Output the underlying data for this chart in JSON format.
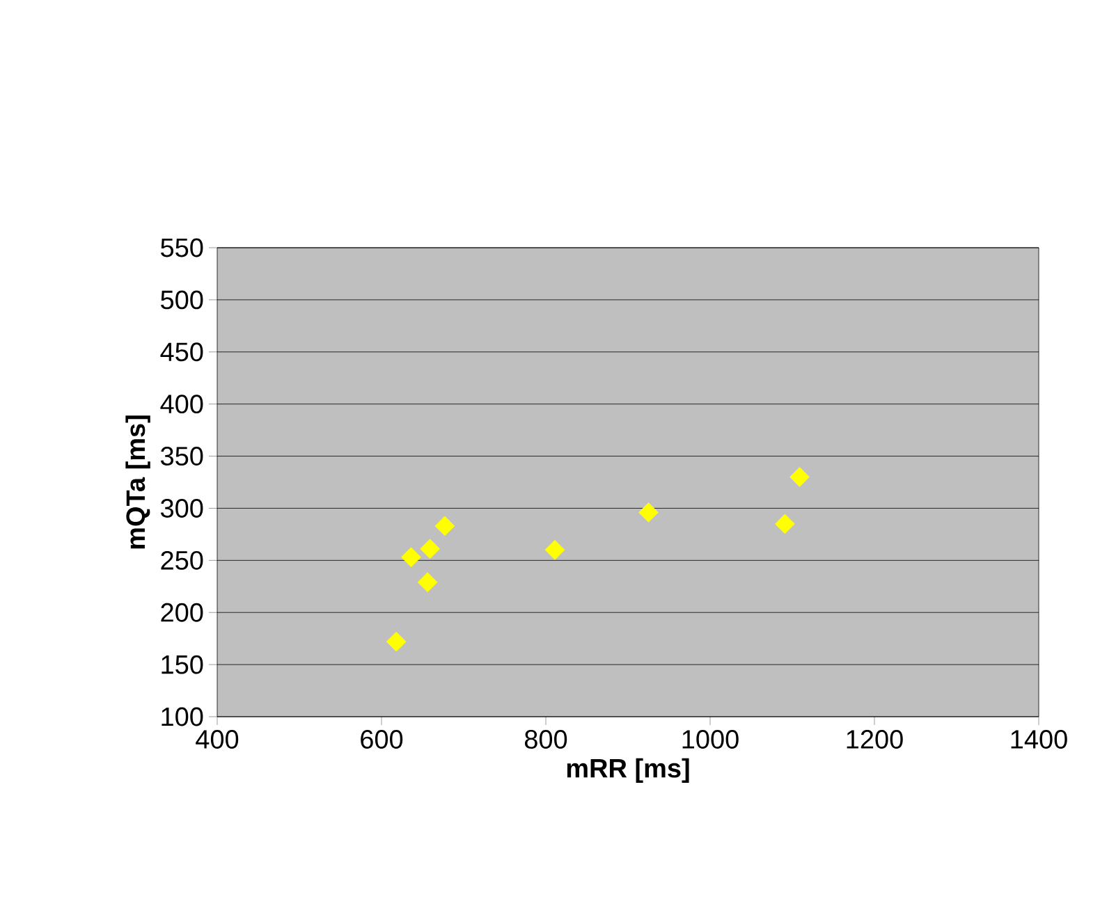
{
  "chart_data": {
    "type": "scatter",
    "xlabel": "mRR [ms]",
    "ylabel": "mQTa [ms]",
    "x": [
      618,
      636,
      656,
      659,
      677,
      811,
      925,
      1091,
      1109
    ],
    "values": [
      172,
      253,
      229,
      261,
      283,
      260,
      296,
      285,
      330
    ],
    "color": "#ffff00",
    "marker": "diamond",
    "grid": "y",
    "xlim": [
      400,
      1400
    ],
    "xticks": [
      400,
      600,
      800,
      1000,
      1200,
      1400
    ],
    "ylim": [
      100,
      550
    ],
    "yticks": [
      100,
      150,
      200,
      250,
      300,
      350,
      400,
      450,
      500,
      550
    ]
  }
}
